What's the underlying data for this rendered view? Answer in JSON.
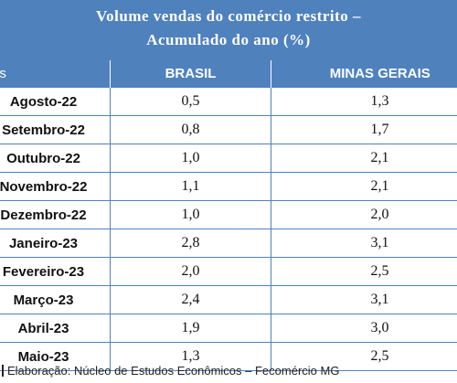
{
  "title": {
    "line1": "Volume vendas do comércio restrito –",
    "line2": "Acumulado do ano (%)"
  },
  "table": {
    "columns": [
      "Mês",
      "BRASIL",
      "MINAS GERAIS"
    ],
    "rows": [
      {
        "mes": "Agosto-22",
        "brasil": "0,5",
        "mg": "1,3"
      },
      {
        "mes": "Setembro-22",
        "brasil": "0,8",
        "mg": "1,7"
      },
      {
        "mes": "Outubro-22",
        "brasil": "1,0",
        "mg": "2,1"
      },
      {
        "mes": "Novembro-22",
        "brasil": "1,1",
        "mg": "2,1"
      },
      {
        "mes": "Dezembro-22",
        "brasil": "1,0",
        "mg": "2,0"
      },
      {
        "mes": "Janeiro-23",
        "brasil": "2,8",
        "mg": "3,1"
      },
      {
        "mes": "Fevereiro-23",
        "brasil": "2,0",
        "mg": "2,5"
      },
      {
        "mes": "Março-23",
        "brasil": "2,4",
        "mg": "3,1"
      },
      {
        "mes": "Abril-23",
        "brasil": "1,9",
        "mg": "3,0"
      },
      {
        "mes": "Maio-23",
        "brasil": "1,3",
        "mg": "2,5"
      }
    ]
  },
  "source": "Elaboração: Núcleo de Estudos Econômicos – Fecomércio MG",
  "colors": {
    "header_bg": "#4f81bd",
    "header_text": "#ffffff",
    "grid_line": "#4f81bd"
  }
}
